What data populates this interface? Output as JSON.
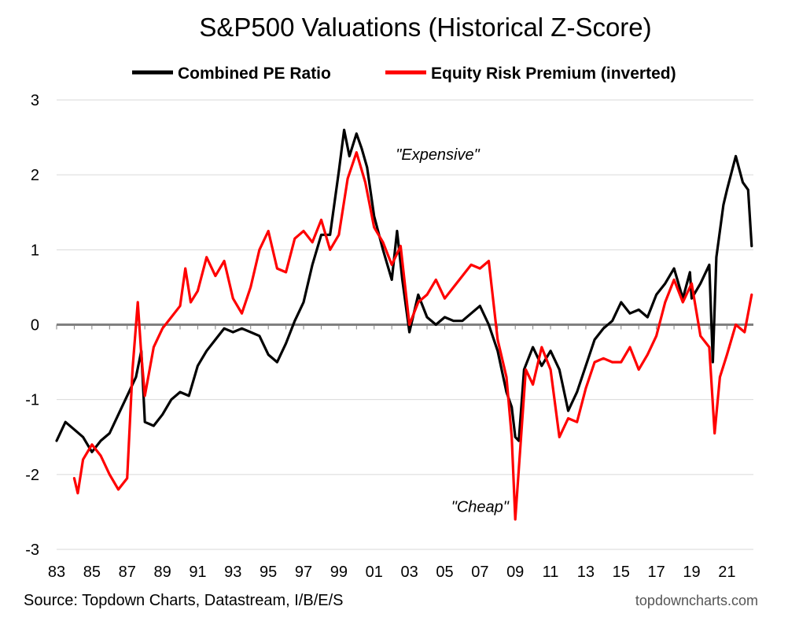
{
  "chart_data": {
    "type": "line",
    "title": "S&P500 Valuations (Historical Z-Score)",
    "source": "Source: Topdown Charts, Datastream, I/B/E/S",
    "brand": "topdowncharts.com",
    "ylim": [
      -3,
      3
    ],
    "yticks": [
      "3",
      "2",
      "1",
      "0",
      "-1",
      "-2",
      "-3"
    ],
    "xlim": [
      1983,
      2022.5
    ],
    "xticks": [
      "83",
      "85",
      "87",
      "89",
      "91",
      "93",
      "95",
      "97",
      "99",
      "01",
      "03",
      "05",
      "07",
      "09",
      "11",
      "13",
      "15",
      "17",
      "19",
      "21"
    ],
    "grid": true,
    "legend_position": "top",
    "annotations": [
      {
        "text": "\"Expensive\"",
        "x": 2004.6,
        "y": 2.2
      },
      {
        "text": "\"Cheap\"",
        "x": 2007.0,
        "y": -2.5
      }
    ],
    "series": [
      {
        "name": "Combined PE Ratio",
        "color": "#000000",
        "x": [
          1983.0,
          1983.5,
          1984.0,
          1984.5,
          1985.0,
          1985.5,
          1986.0,
          1986.5,
          1987.0,
          1987.5,
          1987.8,
          1988.0,
          1988.5,
          1989.0,
          1989.5,
          1990.0,
          1990.5,
          1991.0,
          1991.5,
          1992.0,
          1992.5,
          1993.0,
          1993.5,
          1994.0,
          1994.5,
          1995.0,
          1995.5,
          1996.0,
          1996.5,
          1997.0,
          1997.5,
          1998.0,
          1998.5,
          1999.0,
          1999.3,
          1999.6,
          2000.0,
          2000.3,
          2000.6,
          2001.0,
          2001.5,
          2002.0,
          2002.3,
          2002.6,
          2003.0,
          2003.5,
          2004.0,
          2004.5,
          2005.0,
          2005.5,
          2006.0,
          2006.5,
          2007.0,
          2007.5,
          2008.0,
          2008.5,
          2008.8,
          2009.0,
          2009.2,
          2009.5,
          2010.0,
          2010.5,
          2011.0,
          2011.5,
          2012.0,
          2012.5,
          2013.0,
          2013.5,
          2014.0,
          2014.5,
          2015.0,
          2015.5,
          2016.0,
          2016.5,
          2017.0,
          2017.5,
          2018.0,
          2018.5,
          2018.9,
          2019.0,
          2019.5,
          2020.0,
          2020.2,
          2020.4,
          2020.8,
          2021.0,
          2021.5,
          2021.9,
          2022.2,
          2022.4
        ],
        "values": [
          -1.55,
          -1.3,
          -1.4,
          -1.5,
          -1.7,
          -1.55,
          -1.45,
          -1.2,
          -0.95,
          -0.7,
          -0.35,
          -1.3,
          -1.35,
          -1.2,
          -1.0,
          -0.9,
          -0.95,
          -0.55,
          -0.35,
          -0.2,
          -0.05,
          -0.1,
          -0.05,
          -0.1,
          -0.15,
          -0.4,
          -0.5,
          -0.25,
          0.05,
          0.3,
          0.8,
          1.2,
          1.2,
          2.05,
          2.6,
          2.25,
          2.55,
          2.35,
          2.1,
          1.45,
          1.0,
          0.6,
          1.25,
          0.6,
          -0.1,
          0.4,
          0.1,
          0.0,
          0.1,
          0.05,
          0.05,
          0.15,
          0.25,
          0.0,
          -0.35,
          -0.9,
          -1.1,
          -1.5,
          -1.55,
          -0.6,
          -0.3,
          -0.55,
          -0.35,
          -0.6,
          -1.15,
          -0.9,
          -0.55,
          -0.2,
          -0.05,
          0.05,
          0.3,
          0.15,
          0.2,
          0.1,
          0.4,
          0.55,
          0.75,
          0.35,
          0.7,
          0.35,
          0.55,
          0.8,
          -0.5,
          0.9,
          1.6,
          1.8,
          2.25,
          1.9,
          1.8,
          1.05
        ]
      },
      {
        "name": "Equity Risk Premium (inverted)",
        "color": "#ff0000",
        "x": [
          1984.0,
          1984.2,
          1984.5,
          1985.0,
          1985.5,
          1986.0,
          1986.5,
          1987.0,
          1987.3,
          1987.6,
          1987.8,
          1988.0,
          1988.5,
          1989.0,
          1989.5,
          1990.0,
          1990.3,
          1990.6,
          1991.0,
          1991.5,
          1992.0,
          1992.5,
          1993.0,
          1993.5,
          1994.0,
          1994.5,
          1995.0,
          1995.5,
          1996.0,
          1996.5,
          1997.0,
          1997.5,
          1998.0,
          1998.5,
          1999.0,
          1999.5,
          2000.0,
          2000.5,
          2001.0,
          2001.5,
          2002.0,
          2002.5,
          2003.0,
          2003.5,
          2004.0,
          2004.5,
          2005.0,
          2005.5,
          2006.0,
          2006.5,
          2007.0,
          2007.5,
          2008.0,
          2008.5,
          2008.8,
          2009.0,
          2009.3,
          2009.6,
          2010.0,
          2010.5,
          2011.0,
          2011.5,
          2012.0,
          2012.5,
          2013.0,
          2013.5,
          2014.0,
          2014.5,
          2015.0,
          2015.5,
          2016.0,
          2016.5,
          2017.0,
          2017.5,
          2018.0,
          2018.5,
          2019.0,
          2019.5,
          2020.0,
          2020.3,
          2020.6,
          2021.0,
          2021.5,
          2022.0,
          2022.4
        ],
        "values": [
          -2.05,
          -2.25,
          -1.8,
          -1.6,
          -1.75,
          -2.0,
          -2.2,
          -2.05,
          -0.6,
          0.3,
          -0.4,
          -0.95,
          -0.3,
          -0.05,
          0.1,
          0.25,
          0.75,
          0.3,
          0.45,
          0.9,
          0.65,
          0.85,
          0.35,
          0.15,
          0.5,
          1.0,
          1.25,
          0.75,
          0.7,
          1.15,
          1.25,
          1.1,
          1.4,
          1.0,
          1.2,
          1.95,
          2.3,
          1.9,
          1.3,
          1.1,
          0.8,
          1.05,
          0.0,
          0.3,
          0.4,
          0.6,
          0.35,
          0.5,
          0.65,
          0.8,
          0.75,
          0.85,
          -0.2,
          -0.7,
          -1.5,
          -2.6,
          -1.6,
          -0.6,
          -0.8,
          -0.3,
          -0.6,
          -1.5,
          -1.25,
          -1.3,
          -0.85,
          -0.5,
          -0.45,
          -0.5,
          -0.5,
          -0.3,
          -0.6,
          -0.4,
          -0.15,
          0.3,
          0.6,
          0.3,
          0.55,
          -0.15,
          -0.3,
          -1.45,
          -0.7,
          -0.4,
          0.0,
          -0.1,
          0.4
        ]
      }
    ]
  }
}
